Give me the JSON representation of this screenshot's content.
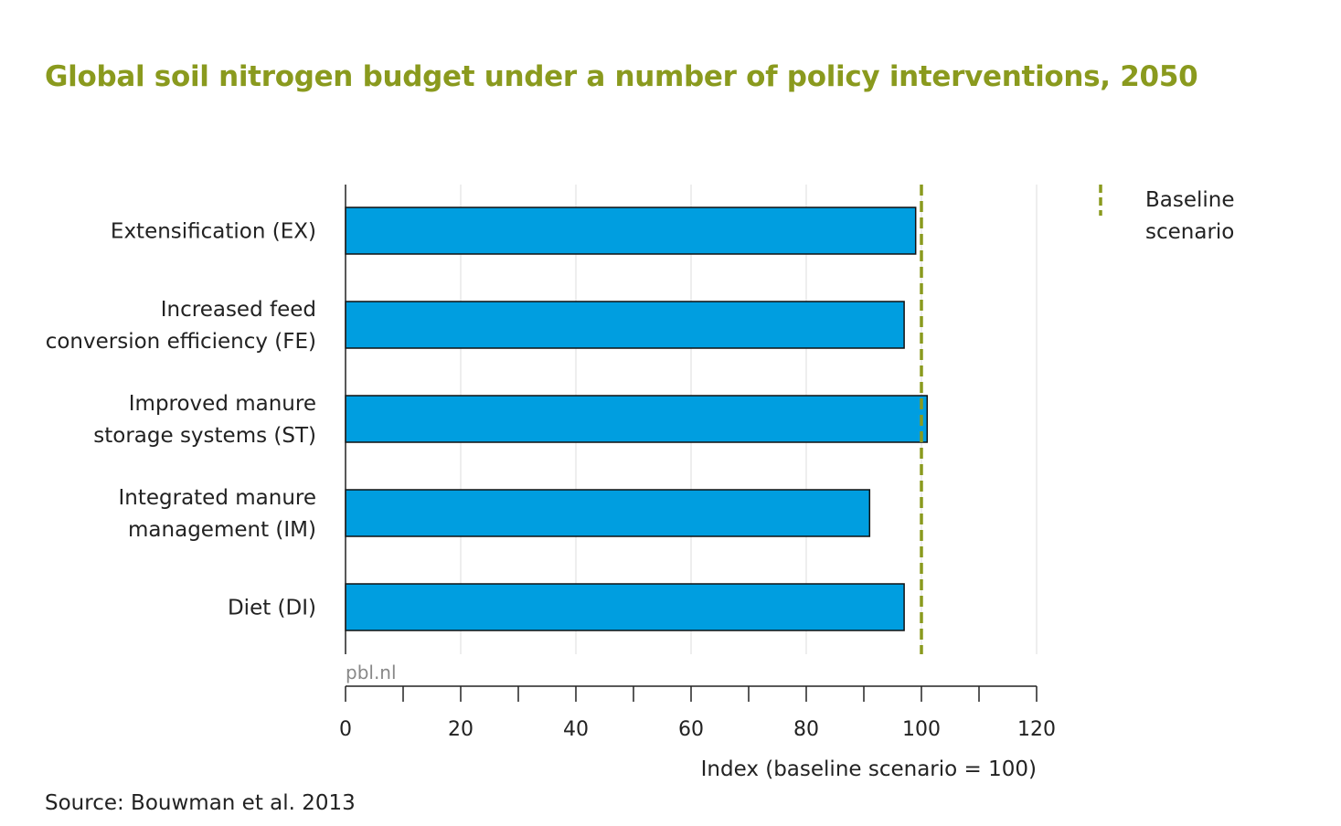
{
  "title": "Global soil nitrogen budget under a number of policy interventions, 2050",
  "source": "Source: Bouwman et al. 2013",
  "watermark": "pbl.nl",
  "colors": {
    "bar": "#009ee0",
    "baseline": "#8a9a1e",
    "title": "#8a9a1e"
  },
  "legend": {
    "line1": "Baseline",
    "line2": "scenario"
  },
  "chart_data": {
    "type": "bar",
    "orientation": "horizontal",
    "categories": [
      [
        "Extensification (EX)"
      ],
      [
        "Increased feed",
        "conversion efficiency (FE)"
      ],
      [
        "Improved manure",
        "storage systems (ST)"
      ],
      [
        "Integrated manure",
        "management (IM)"
      ],
      [
        "Diet (DI)"
      ]
    ],
    "values": [
      99,
      97,
      101,
      91,
      97
    ],
    "xlabel": "Index (baseline scenario = 100)",
    "xlim": [
      0,
      120
    ],
    "ticks": [
      0,
      20,
      40,
      60,
      80,
      100,
      120
    ],
    "reference_line": {
      "value": 100,
      "label": "Baseline scenario",
      "style": "dashed"
    },
    "grid": true,
    "legend_position": "top-right"
  }
}
